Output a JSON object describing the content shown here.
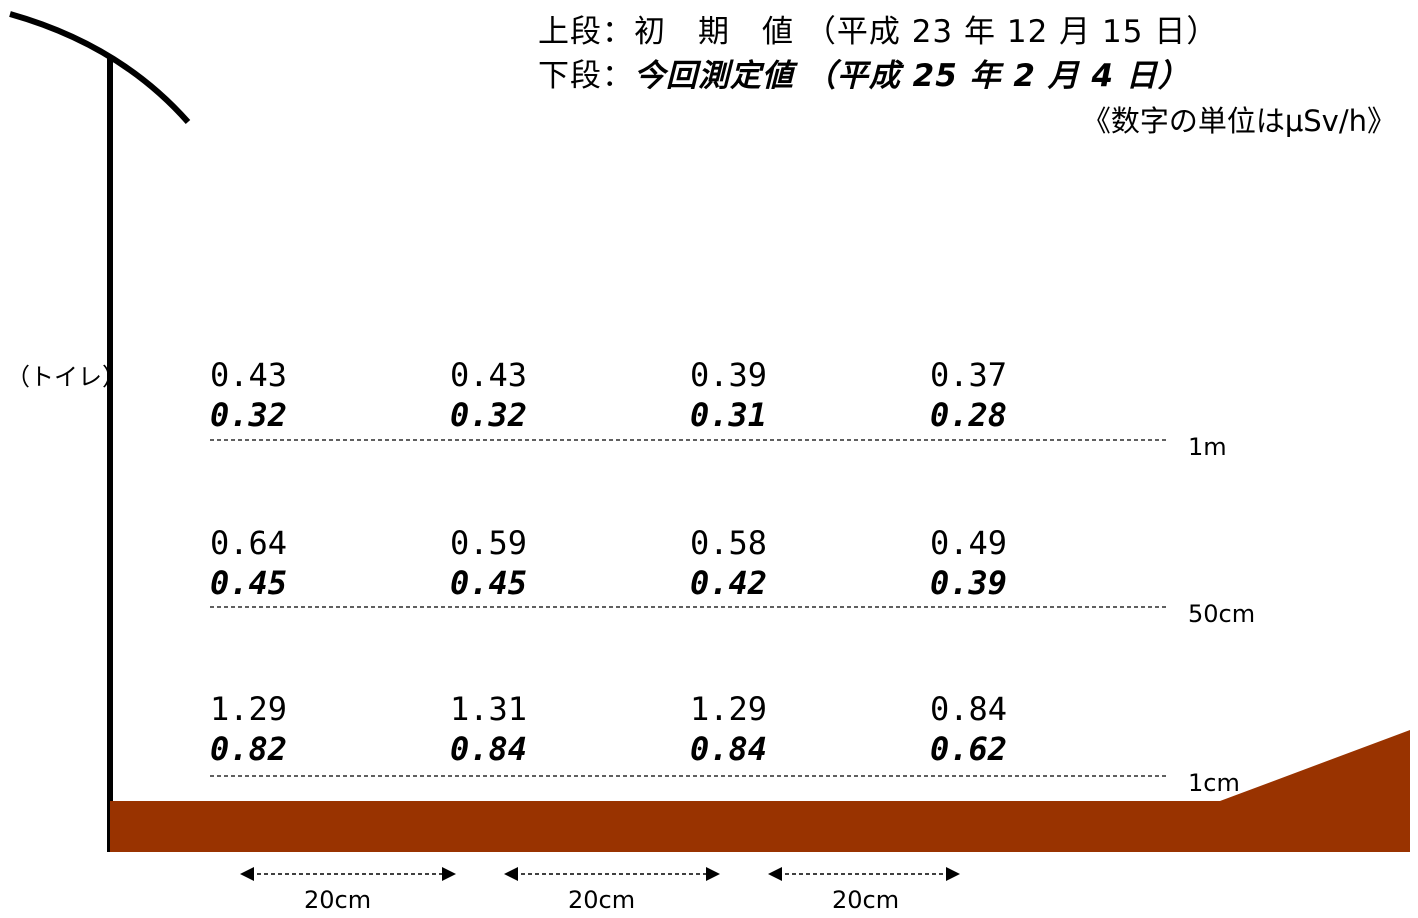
{
  "legend": {
    "upper_prefix": "上段：",
    "upper_label": "初　期　値",
    "upper_date": "（平成 23 年 12 月 15 日）",
    "lower_prefix": "下段：",
    "lower_label": "今回測定値",
    "lower_date": "（平成 25 年 2 月 4 日）",
    "unit_note": "《数字の単位はμSv/h》"
  },
  "wall_label": "（トイレ）",
  "colors": {
    "ground": "#993300",
    "lines": "#000000"
  },
  "heights": [
    "1m",
    "50cm",
    "1cm"
  ],
  "spacings": [
    "20cm",
    "20cm",
    "20cm"
  ],
  "measurements": [
    {
      "height": "1m",
      "initial": [
        "0.43",
        "0.43",
        "0.39",
        "0.37"
      ],
      "current": [
        "0.32",
        "0.32",
        "0.31",
        "0.28"
      ]
    },
    {
      "height": "50cm",
      "initial": [
        "0.64",
        "0.59",
        "0.58",
        "0.49"
      ],
      "current": [
        "0.45",
        "0.45",
        "0.42",
        "0.39"
      ]
    },
    {
      "height": "1cm",
      "initial": [
        "1.29",
        "1.31",
        "1.29",
        "0.84"
      ],
      "current": [
        "0.82",
        "0.84",
        "0.84",
        "0.62"
      ]
    }
  ]
}
